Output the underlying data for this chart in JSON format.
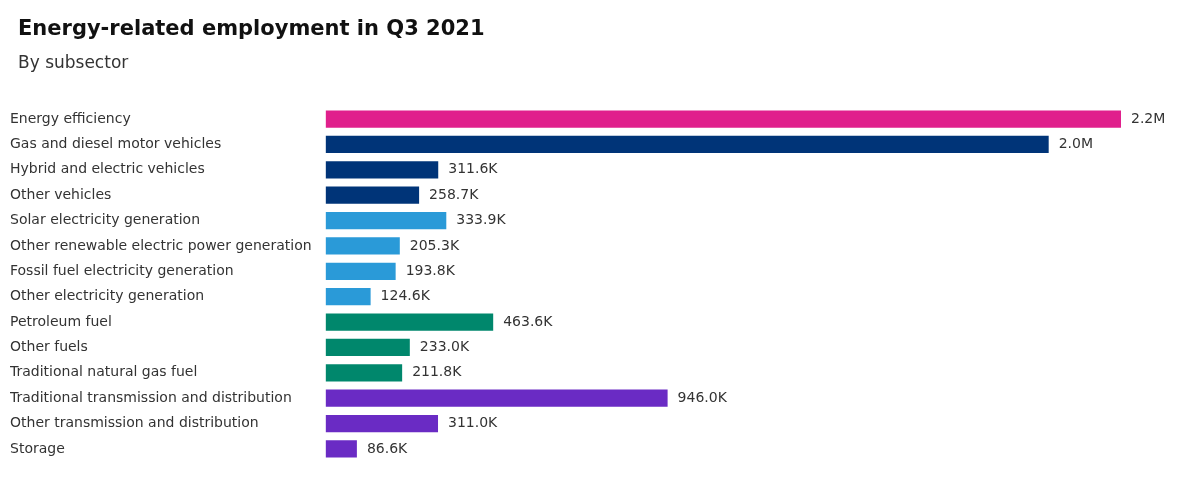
{
  "chart_data": {
    "type": "bar",
    "orientation": "horizontal",
    "title": "Energy-related employment in Q3 2021",
    "subtitle": "By subsector",
    "categories": [
      "Energy efficiency",
      "Gas and diesel motor vehicles",
      "Hybrid and electric vehicles",
      "Other vehicles",
      "Solar electricity generation",
      "Other renewable electric power generation",
      "Fossil fuel electricity generation",
      "Other electricity generation",
      "Petroleum fuel",
      "Other fuels",
      "Traditional natural gas fuel",
      "Traditional transmission and distribution",
      "Other transmission and distribution",
      "Storage"
    ],
    "values": [
      2200000,
      2000000,
      311600,
      258700,
      333900,
      205300,
      193800,
      124600,
      463600,
      233000,
      211800,
      946000,
      311000,
      86600
    ],
    "value_labels": [
      "2.2M",
      "2.0M",
      "311.6K",
      "258.7K",
      "333.9K",
      "205.3K",
      "193.8K",
      "124.6K",
      "463.6K",
      "233.0K",
      "211.8K",
      "946.0K",
      "311.0K",
      "86.6K"
    ],
    "colors": [
      "#e0208c",
      "#003478",
      "#003478",
      "#003478",
      "#2a9ad8",
      "#2a9ad8",
      "#2a9ad8",
      "#2a9ad8",
      "#00876c",
      "#00876c",
      "#00876c",
      "#6a2bc4",
      "#6a2bc4",
      "#6a2bc4"
    ],
    "legend": false
  }
}
